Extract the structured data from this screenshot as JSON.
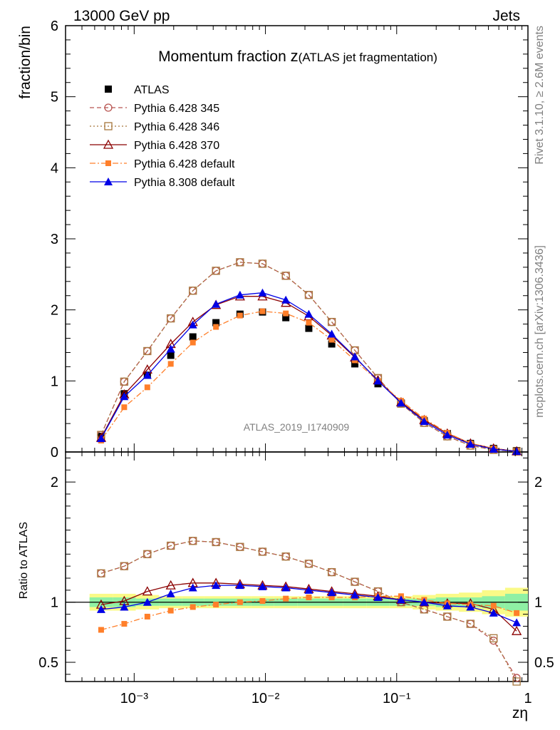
{
  "header": {
    "left": "13000 GeV pp",
    "right": "Jets"
  },
  "title": {
    "main": "Momentum fraction ",
    "z": "z",
    "sub": "(ATLAS jet fragmentation)"
  },
  "side": {
    "rivet": "Rivet 3.1.10, ≥ 2.6M events",
    "mcplots": "mcplots.cern.ch [arXiv:1306.3436]"
  },
  "watermark": "ATLAS_2019_I1740909",
  "colors": {
    "ATLAS": "#000000",
    "p345": "#b85450",
    "p346": "#a6763c",
    "p370": "#8b0000",
    "p6def": "#ff7f2a",
    "p8def": "#0000e6",
    "band_inner": "#8ff0a4",
    "band_outer": "#fafa87"
  },
  "chart_data": [
    {
      "type": "line",
      "panel": "main",
      "ylabel": "fraction/bin",
      "ylim": [
        0,
        6
      ],
      "yticks": [
        0,
        1,
        2,
        3,
        4,
        5,
        6
      ],
      "xlog": true,
      "xlim": [
        0.0003,
        1
      ],
      "x": [
        0.00056,
        0.00084,
        0.00126,
        0.0019,
        0.0028,
        0.0042,
        0.0064,
        0.0095,
        0.0143,
        0.0214,
        0.032,
        0.048,
        0.072,
        0.108,
        0.162,
        0.243,
        0.365,
        0.547,
        0.82
      ],
      "legend": [
        "ATLAS",
        "Pythia 6.428 345",
        "Pythia 6.428 346",
        "Pythia 6.428 370",
        "Pythia 6.428 default",
        "Pythia 8.308 default"
      ],
      "series": [
        {
          "name": "ATLAS",
          "key": "ATLAS",
          "style": "data",
          "values": [
            0.22,
            0.82,
            1.08,
            1.36,
            1.62,
            1.82,
            1.94,
            1.97,
            1.89,
            1.74,
            1.52,
            1.24,
            0.96,
            0.69,
            0.44,
            0.26,
            0.12,
            0.05,
            0.02
          ]
        },
        {
          "name": "Pythia 6.428 345",
          "key": "p345",
          "style": "circle-dash",
          "values": [
            0.24,
            0.99,
            1.42,
            1.88,
            2.27,
            2.55,
            2.67,
            2.65,
            2.48,
            2.21,
            1.83,
            1.43,
            1.04,
            0.68,
            0.41,
            0.22,
            0.09,
            0.03,
            0.01
          ]
        },
        {
          "name": "Pythia 6.428 346",
          "key": "p346",
          "style": "square-dot",
          "values": [
            0.24,
            0.99,
            1.42,
            1.88,
            2.27,
            2.55,
            2.67,
            2.65,
            2.48,
            2.21,
            1.83,
            1.43,
            1.04,
            0.68,
            0.41,
            0.22,
            0.09,
            0.03,
            0.01
          ]
        },
        {
          "name": "Pythia 6.428 370",
          "key": "p370",
          "style": "tri-open",
          "values": [
            0.2,
            0.81,
            1.16,
            1.52,
            1.83,
            2.07,
            2.19,
            2.19,
            2.1,
            1.91,
            1.64,
            1.33,
            1.01,
            0.7,
            0.45,
            0.26,
            0.12,
            0.05,
            0.01
          ]
        },
        {
          "name": "Pythia 6.428 default",
          "key": "p6def",
          "style": "square-dashdot",
          "values": [
            0.16,
            0.63,
            0.91,
            1.24,
            1.54,
            1.76,
            1.92,
            1.98,
            1.95,
            1.82,
            1.58,
            1.29,
            1.0,
            0.72,
            0.47,
            0.27,
            0.12,
            0.05,
            0.01
          ]
        },
        {
          "name": "Pythia 8.308 default",
          "key": "p8def",
          "style": "tri-filled",
          "values": [
            0.19,
            0.78,
            1.08,
            1.45,
            1.79,
            2.08,
            2.21,
            2.24,
            2.14,
            1.94,
            1.66,
            1.34,
            1.0,
            0.69,
            0.43,
            0.24,
            0.11,
            0.04,
            0.01
          ]
        }
      ]
    },
    {
      "type": "line",
      "panel": "ratio",
      "ylabel": "Ratio to ATLAS",
      "xlabel": "zη",
      "ylim": [
        0.34,
        2.25
      ],
      "yticks": [
        0.5,
        1,
        2
      ],
      "xlog": true,
      "xlim": [
        0.0003,
        1
      ],
      "xticklabels": [
        "10⁻³",
        "10⁻²",
        "10⁻¹",
        "1"
      ],
      "x": [
        0.00056,
        0.00084,
        0.00126,
        0.0019,
        0.0028,
        0.0042,
        0.0064,
        0.0095,
        0.0143,
        0.0214,
        0.032,
        0.048,
        0.072,
        0.108,
        0.162,
        0.243,
        0.365,
        0.547,
        0.82
      ],
      "band_inner": [
        0.04,
        0.04,
        0.03,
        0.03,
        0.03,
        0.03,
        0.03,
        0.03,
        0.03,
        0.03,
        0.03,
        0.03,
        0.03,
        0.03,
        0.03,
        0.04,
        0.04,
        0.05,
        0.07
      ],
      "band_outer": [
        0.07,
        0.07,
        0.06,
        0.05,
        0.05,
        0.05,
        0.05,
        0.05,
        0.05,
        0.05,
        0.05,
        0.05,
        0.05,
        0.05,
        0.06,
        0.07,
        0.08,
        0.1,
        0.12
      ],
      "series": [
        {
          "name": "Pythia 6.428 345",
          "key": "p345",
          "style": "circle-dash",
          "values": [
            1.24,
            1.3,
            1.4,
            1.47,
            1.51,
            1.5,
            1.46,
            1.42,
            1.38,
            1.32,
            1.25,
            1.17,
            1.09,
            1.0,
            0.94,
            0.88,
            0.82,
            0.68,
            0.37
          ]
        },
        {
          "name": "Pythia 6.428 346",
          "key": "p346",
          "style": "square-dot",
          "values": [
            1.24,
            1.3,
            1.4,
            1.47,
            1.51,
            1.5,
            1.46,
            1.42,
            1.38,
            1.32,
            1.25,
            1.17,
            1.09,
            1.0,
            0.94,
            0.88,
            0.82,
            0.7,
            0.34
          ]
        },
        {
          "name": "Pythia 6.428 370",
          "key": "p370",
          "style": "tri-open",
          "values": [
            0.98,
            1.01,
            1.09,
            1.14,
            1.16,
            1.16,
            1.15,
            1.14,
            1.13,
            1.11,
            1.09,
            1.07,
            1.05,
            1.02,
            1.0,
            0.99,
            0.99,
            0.94,
            0.76
          ]
        },
        {
          "name": "Pythia 6.428 default",
          "key": "p6def",
          "style": "square-dashdot",
          "values": [
            0.77,
            0.82,
            0.88,
            0.93,
            0.96,
            0.98,
            1.0,
            1.01,
            1.03,
            1.04,
            1.04,
            1.04,
            1.05,
            1.05,
            1.02,
            0.99,
            0.98,
            0.97,
            0.91
          ]
        },
        {
          "name": "Pythia 8.308 default",
          "key": "p8def",
          "style": "tri-filled",
          "values": [
            0.94,
            0.96,
            1.0,
            1.07,
            1.12,
            1.14,
            1.14,
            1.13,
            1.12,
            1.1,
            1.08,
            1.06,
            1.04,
            1.02,
            1.0,
            0.97,
            0.96,
            0.91,
            0.83
          ]
        }
      ]
    }
  ]
}
